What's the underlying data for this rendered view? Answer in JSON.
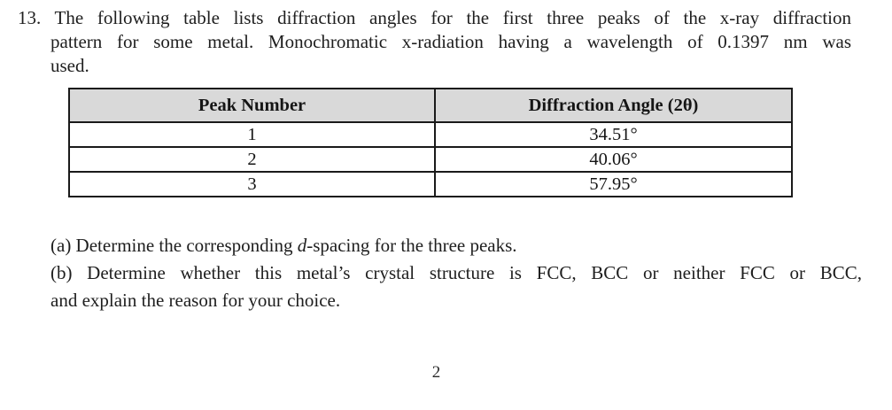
{
  "page": {
    "background": "#ffffff",
    "text_color": "#1e1e1e",
    "page_number": "2"
  },
  "problem": {
    "number": "13.",
    "lines": [
      "13. The following table lists diffraction angles for the first three peaks of the x-ray diffraction",
      "pattern for some metal. Monochromatic x-radiation having a wavelength of 0.1397 nm was",
      "used."
    ]
  },
  "table": {
    "header_bg": "#d9d9d9",
    "columns": [
      "Peak Number",
      "Diffraction Angle (2θ)"
    ],
    "rows": [
      {
        "peak": "1",
        "angle": "34.51°"
      },
      {
        "peak": "2",
        "angle": "40.06°"
      },
      {
        "peak": "3",
        "angle": "57.95°"
      }
    ]
  },
  "questions": {
    "a": {
      "prefix": "(a) Determine the corresponding ",
      "italic": "d",
      "suffix": "-spacing for the three peaks."
    },
    "b": {
      "line1": "(b) Determine whether this metal’s crystal structure is FCC, BCC or neither FCC or BCC,",
      "line2": "and explain the reason for your choice."
    }
  }
}
